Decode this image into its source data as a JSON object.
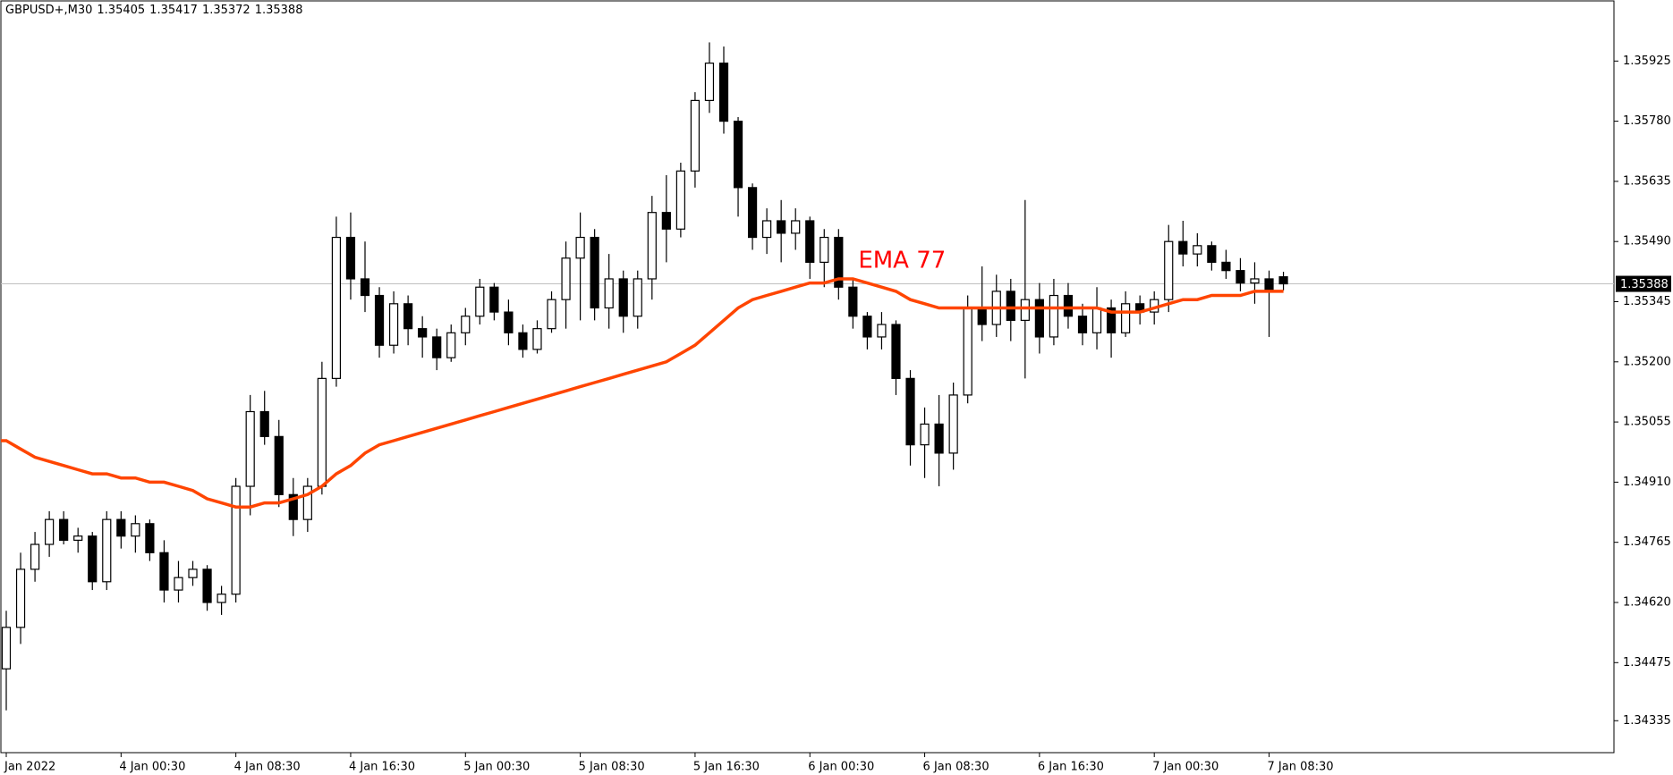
{
  "chart_data": {
    "type": "candlestick",
    "title": "GBPUSD+,M30",
    "categories": [
      "Jan 2022",
      null,
      null,
      null,
      null,
      null,
      null,
      null,
      "4 Jan 00:30",
      null,
      null,
      null,
      null,
      null,
      null,
      null,
      "4 Jan 08:30",
      null,
      null,
      null,
      null,
      null,
      null,
      null,
      "4 Jan 16:30",
      null,
      null,
      null,
      null,
      null,
      null,
      null,
      "5 Jan 00:30",
      null,
      null,
      null,
      null,
      null,
      null,
      null,
      "5 Jan 08:30",
      null,
      null,
      null,
      null,
      null,
      null,
      null,
      "5 Jan 16:30",
      null,
      null,
      null,
      null,
      null,
      null,
      null,
      "6 Jan 00:30",
      null,
      null,
      null,
      null,
      null,
      null,
      null,
      "6 Jan 08:30",
      null,
      null,
      null,
      null,
      null,
      null,
      null,
      "6 Jan 16:30",
      null,
      null,
      null,
      null,
      null,
      null,
      null,
      "7 Jan 00:30",
      null,
      null,
      null,
      null,
      null,
      null,
      null,
      "7 Jan 08:30",
      null
    ],
    "open": [
      1.3446,
      1.3456,
      1.347,
      1.3476,
      1.3482,
      1.3477,
      1.3478,
      1.3467,
      1.3482,
      1.3478,
      1.3481,
      1.3474,
      1.3465,
      1.3468,
      1.347,
      1.3462,
      1.3464,
      1.349,
      1.3508,
      1.3502,
      1.3488,
      1.3482,
      1.349,
      1.3516,
      1.355,
      1.354,
      1.3536,
      1.3524,
      1.3534,
      1.3528,
      1.3526,
      1.3521,
      1.3527,
      1.3531,
      1.3538,
      1.3532,
      1.3527,
      1.3523,
      1.3528,
      1.3535,
      1.3545,
      1.355,
      1.3533,
      1.354,
      1.3531,
      1.354,
      1.3556,
      1.3552,
      1.3566,
      1.3583,
      1.3592,
      1.3578,
      1.3562,
      1.355,
      1.3554,
      1.3551,
      1.3554,
      1.3544,
      1.355,
      1.3538,
      1.3531,
      1.3526,
      1.3529,
      1.3516,
      1.35,
      1.3505,
      1.3498,
      1.3512,
      1.3533,
      1.3529,
      1.3537,
      1.353,
      1.3535,
      1.3526,
      1.3536,
      1.3531,
      1.3527,
      1.3533,
      1.3527,
      1.3534,
      1.3532,
      1.3535,
      1.3549,
      1.3546,
      1.3548,
      1.3544,
      1.3542,
      1.3539,
      1.354,
      1.35405
    ],
    "high": [
      1.346,
      1.3474,
      1.3479,
      1.3484,
      1.3484,
      1.348,
      1.3479,
      1.3484,
      1.3484,
      1.3483,
      1.3482,
      1.3477,
      1.3472,
      1.3472,
      1.3471,
      1.3466,
      1.3492,
      1.3512,
      1.3513,
      1.3506,
      1.3492,
      1.3492,
      1.352,
      1.3555,
      1.3556,
      1.3549,
      1.3538,
      1.3537,
      1.3536,
      1.3531,
      1.3528,
      1.3529,
      1.3533,
      1.354,
      1.3539,
      1.3535,
      1.3529,
      1.353,
      1.3537,
      1.3549,
      1.3556,
      1.3552,
      1.3546,
      1.3542,
      1.3542,
      1.356,
      1.3565,
      1.3568,
      1.3585,
      1.3597,
      1.3596,
      1.3579,
      1.3563,
      1.3557,
      1.3559,
      1.3557,
      1.3555,
      1.3552,
      1.3552,
      1.354,
      1.3532,
      1.3532,
      1.353,
      1.3518,
      1.3509,
      1.3512,
      1.3515,
      1.3536,
      1.3543,
      1.3541,
      1.354,
      1.3559,
      1.3539,
      1.354,
      1.3539,
      1.3534,
      1.3538,
      1.3535,
      1.3537,
      1.3536,
      1.3537,
      1.3553,
      1.3554,
      1.3551,
      1.3549,
      1.3547,
      1.3545,
      1.3544,
      1.3542,
      1.35417
    ],
    "low": [
      1.3436,
      1.3452,
      1.3467,
      1.3473,
      1.3476,
      1.3474,
      1.3465,
      1.3465,
      1.3475,
      1.3474,
      1.3472,
      1.3462,
      1.3462,
      1.3466,
      1.346,
      1.3459,
      1.3462,
      1.3483,
      1.35,
      1.3485,
      1.3478,
      1.3479,
      1.3488,
      1.3514,
      1.3535,
      1.3532,
      1.3521,
      1.3522,
      1.3524,
      1.3521,
      1.3518,
      1.352,
      1.3524,
      1.3529,
      1.353,
      1.3524,
      1.3521,
      1.3522,
      1.3527,
      1.3528,
      1.353,
      1.353,
      1.3528,
      1.3527,
      1.3528,
      1.3535,
      1.3544,
      1.355,
      1.3562,
      1.358,
      1.3575,
      1.3555,
      1.3547,
      1.3546,
      1.3544,
      1.3547,
      1.354,
      1.3538,
      1.3535,
      1.3528,
      1.3523,
      1.3523,
      1.3512,
      1.3495,
      1.3492,
      1.349,
      1.3494,
      1.351,
      1.3525,
      1.3526,
      1.3525,
      1.3516,
      1.3522,
      1.3524,
      1.3528,
      1.3524,
      1.3523,
      1.3521,
      1.3526,
      1.3529,
      1.3529,
      1.3532,
      1.3543,
      1.3543,
      1.3542,
      1.354,
      1.3537,
      1.3534,
      1.3526,
      1.35372
    ],
    "close": [
      1.3456,
      1.347,
      1.3476,
      1.3482,
      1.3477,
      1.3478,
      1.3467,
      1.3482,
      1.3478,
      1.3481,
      1.3474,
      1.3465,
      1.3468,
      1.347,
      1.3462,
      1.3464,
      1.349,
      1.3508,
      1.3502,
      1.3488,
      1.3482,
      1.349,
      1.3516,
      1.355,
      1.354,
      1.3536,
      1.3524,
      1.3534,
      1.3528,
      1.3526,
      1.3521,
      1.3527,
      1.3531,
      1.3538,
      1.3532,
      1.3527,
      1.3523,
      1.3528,
      1.3535,
      1.3545,
      1.355,
      1.3533,
      1.354,
      1.3531,
      1.354,
      1.3556,
      1.3552,
      1.3566,
      1.3583,
      1.3592,
      1.3578,
      1.3562,
      1.355,
      1.3554,
      1.3551,
      1.3554,
      1.3544,
      1.355,
      1.3538,
      1.3531,
      1.3526,
      1.3529,
      1.3516,
      1.35,
      1.3505,
      1.3498,
      1.3512,
      1.3533,
      1.3529,
      1.3537,
      1.353,
      1.3535,
      1.3526,
      1.3536,
      1.3531,
      1.3527,
      1.3533,
      1.3527,
      1.3534,
      1.3532,
      1.3535,
      1.3549,
      1.3546,
      1.3548,
      1.3544,
      1.3542,
      1.3539,
      1.354,
      1.3537,
      1.35388
    ],
    "up_color": "#ffffff",
    "down_color": "#000000",
    "overlays": [
      {
        "name": "EMA 77",
        "color": "#ff4500",
        "label_color": "#ff0000",
        "values": [
          1.3501,
          1.3499,
          1.3497,
          1.3496,
          1.3495,
          1.3494,
          1.3493,
          1.3493,
          1.3492,
          1.3492,
          1.3491,
          1.3491,
          1.349,
          1.3489,
          1.3487,
          1.3486,
          1.3485,
          1.3485,
          1.3486,
          1.3486,
          1.3487,
          1.3488,
          1.349,
          1.3493,
          1.3495,
          1.3498,
          1.35,
          1.3501,
          1.3502,
          1.3503,
          1.3504,
          1.3505,
          1.3506,
          1.3507,
          1.3508,
          1.3509,
          1.351,
          1.3511,
          1.3512,
          1.3513,
          1.3514,
          1.3515,
          1.3516,
          1.3517,
          1.3518,
          1.3519,
          1.352,
          1.3522,
          1.3524,
          1.3527,
          1.353,
          1.3533,
          1.3535,
          1.3536,
          1.3537,
          1.3538,
          1.3539,
          1.3539,
          1.354,
          1.354,
          1.3539,
          1.3538,
          1.3537,
          1.3535,
          1.3534,
          1.3533,
          1.3533,
          1.3533,
          1.3533,
          1.3533,
          1.3533,
          1.3533,
          1.3533,
          1.3533,
          1.3533,
          1.3533,
          1.3533,
          1.3532,
          1.3532,
          1.3532,
          1.3533,
          1.3534,
          1.3535,
          1.3535,
          1.3536,
          1.3536,
          1.3536,
          1.3537,
          1.3537,
          1.3537
        ]
      }
    ],
    "current_price": 1.35388,
    "ylim": [
      1.34258,
      1.3607
    ],
    "yticks": [
      1.35925,
      {
        "value": 1.3578,
        "label": "1.35780"
      },
      1.35635,
      {
        "value": 1.3549,
        "label": "1.35490"
      },
      1.35345,
      {
        "value": 1.352,
        "label": "1.35200"
      },
      1.35055,
      {
        "value": 1.3491,
        "label": "1.34910"
      },
      1.34765,
      {
        "value": 1.3462,
        "label": "1.34620"
      },
      1.34475,
      1.34335
    ]
  }
}
